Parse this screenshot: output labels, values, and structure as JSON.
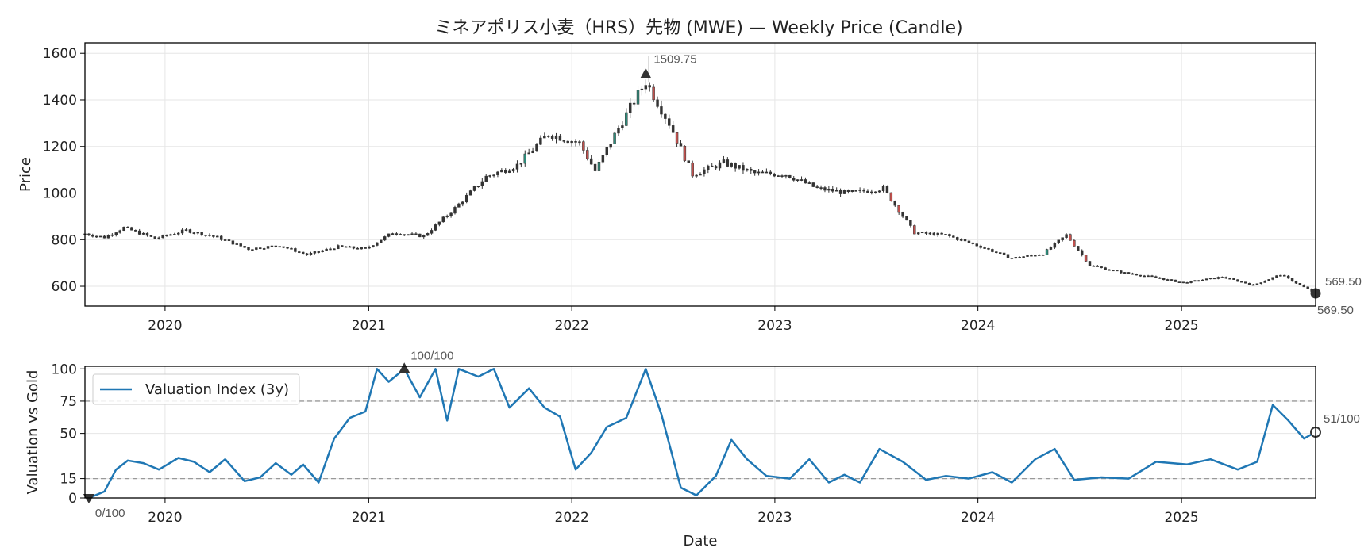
{
  "title": "ミネアポリス小麦（HRS）先物 (MWE) — Weekly Price (Candle)",
  "colors": {
    "up": "#2e8b7a",
    "down": "#c0504d",
    "body": "#333333",
    "line": "#1f77b4",
    "ref": "#999999"
  },
  "chart_data": [
    {
      "type": "candlestick",
      "title": "ミネアポリス小麦（HRS）先物 (MWE) — Weekly Price (Candle)",
      "ylabel": "Price",
      "xlabel": "",
      "x_range": [
        "2019-08-10",
        "2025-08-30"
      ],
      "ylim": [
        515,
        1645
      ],
      "yticks": [
        600,
        800,
        1000,
        1200,
        1400,
        1600
      ],
      "xticks": [
        "2020",
        "2021",
        "2022",
        "2023",
        "2024",
        "2025"
      ],
      "grid": true,
      "annotations": [
        {
          "label": "1509.75",
          "x": "2022-05-14",
          "y": 1509.75,
          "marker": "triangle-up"
        },
        {
          "label": "569.50",
          "x": "2025-08-30",
          "y": 569.5,
          "marker": "circle"
        },
        {
          "label": "569.50",
          "x": "2025-08-30",
          "y": 569.5,
          "marker": "none"
        }
      ],
      "anchors": [
        [
          "2019-08-10",
          825
        ],
        [
          "2019-09-14",
          810
        ],
        [
          "2019-10-19",
          852
        ],
        [
          "2019-12-14",
          805
        ],
        [
          "2020-02-08",
          840
        ],
        [
          "2020-04-04",
          810
        ],
        [
          "2020-05-30",
          760
        ],
        [
          "2020-07-25",
          775
        ],
        [
          "2020-09-12",
          735
        ],
        [
          "2020-11-07",
          770
        ],
        [
          "2020-12-26",
          760
        ],
        [
          "2021-02-13",
          830
        ],
        [
          "2021-04-10",
          815
        ],
        [
          "2021-06-05",
          935
        ],
        [
          "2021-07-31",
          1070
        ],
        [
          "2021-09-25",
          1120
        ],
        [
          "2021-11-20",
          1255
        ],
        [
          "2022-01-15",
          1215
        ],
        [
          "2022-02-12",
          1095
        ],
        [
          "2022-03-26",
          1280
        ],
        [
          "2022-05-14",
          1480
        ],
        [
          "2022-06-25",
          1300
        ],
        [
          "2022-08-06",
          1080
        ],
        [
          "2022-10-01",
          1130
        ],
        [
          "2022-11-26",
          1085
        ],
        [
          "2023-01-21",
          1080
        ],
        [
          "2023-03-18",
          1020
        ],
        [
          "2023-05-13",
          1000
        ],
        [
          "2023-07-15",
          1020
        ],
        [
          "2023-09-09",
          830
        ],
        [
          "2023-11-04",
          820
        ],
        [
          "2024-01-06",
          770
        ],
        [
          "2024-03-02",
          720
        ],
        [
          "2024-04-27",
          740
        ],
        [
          "2024-06-08",
          820
        ],
        [
          "2024-07-20",
          690
        ],
        [
          "2024-09-14",
          660
        ],
        [
          "2024-11-09",
          640
        ],
        [
          "2025-01-04",
          615
        ],
        [
          "2025-03-15",
          640
        ],
        [
          "2025-05-10",
          605
        ],
        [
          "2025-06-28",
          650
        ],
        [
          "2025-08-30",
          569.5
        ]
      ]
    },
    {
      "type": "line",
      "ylabel": "Valuation vs Gold",
      "xlabel": "Date",
      "ylim": [
        0,
        102
      ],
      "yticks": [
        0,
        15,
        50,
        75,
        100
      ],
      "xticks": [
        "2020",
        "2021",
        "2022",
        "2023",
        "2024",
        "2025"
      ],
      "reference_lines": [
        15,
        75
      ],
      "legend": "top-left",
      "grid": true,
      "series": [
        {
          "name": "Valuation Index (3y)",
          "points": [
            [
              "2019-08-17",
              0
            ],
            [
              "2019-09-14",
              5
            ],
            [
              "2019-10-05",
              22
            ],
            [
              "2019-10-26",
              29
            ],
            [
              "2019-11-23",
              27
            ],
            [
              "2019-12-21",
              22
            ],
            [
              "2020-01-25",
              31
            ],
            [
              "2020-02-22",
              28
            ],
            [
              "2020-03-21",
              20
            ],
            [
              "2020-04-18",
              30
            ],
            [
              "2020-05-23",
              13
            ],
            [
              "2020-06-20",
              16
            ],
            [
              "2020-07-18",
              27
            ],
            [
              "2020-08-15",
              18
            ],
            [
              "2020-09-05",
              26
            ],
            [
              "2020-10-03",
              12
            ],
            [
              "2020-10-31",
              46
            ],
            [
              "2020-11-28",
              62
            ],
            [
              "2020-12-26",
              67
            ],
            [
              "2021-01-16",
              100
            ],
            [
              "2021-02-06",
              90
            ],
            [
              "2021-03-06",
              100
            ],
            [
              "2021-04-03",
              78
            ],
            [
              "2021-05-01",
              100
            ],
            [
              "2021-05-22",
              60
            ],
            [
              "2021-06-12",
              100
            ],
            [
              "2021-07-17",
              94
            ],
            [
              "2021-08-14",
              100
            ],
            [
              "2021-09-11",
              70
            ],
            [
              "2021-10-16",
              85
            ],
            [
              "2021-11-13",
              70
            ],
            [
              "2021-12-11",
              63
            ],
            [
              "2022-01-08",
              22
            ],
            [
              "2022-02-05",
              35
            ],
            [
              "2022-03-05",
              55
            ],
            [
              "2022-04-09",
              62
            ],
            [
              "2022-05-14",
              100
            ],
            [
              "2022-06-11",
              65
            ],
            [
              "2022-07-16",
              8
            ],
            [
              "2022-08-13",
              2
            ],
            [
              "2022-09-17",
              17
            ],
            [
              "2022-10-15",
              45
            ],
            [
              "2022-11-12",
              30
            ],
            [
              "2022-12-17",
              17
            ],
            [
              "2023-01-28",
              15
            ],
            [
              "2023-03-04",
              30
            ],
            [
              "2023-04-08",
              12
            ],
            [
              "2023-05-06",
              18
            ],
            [
              "2023-06-03",
              12
            ],
            [
              "2023-07-08",
              38
            ],
            [
              "2023-08-19",
              28
            ],
            [
              "2023-09-30",
              14
            ],
            [
              "2023-11-04",
              17
            ],
            [
              "2023-12-16",
              15
            ],
            [
              "2024-01-27",
              20
            ],
            [
              "2024-03-02",
              12
            ],
            [
              "2024-04-13",
              30
            ],
            [
              "2024-05-18",
              38
            ],
            [
              "2024-06-22",
              14
            ],
            [
              "2024-08-10",
              16
            ],
            [
              "2024-09-28",
              15
            ],
            [
              "2024-11-16",
              28
            ],
            [
              "2025-01-11",
              26
            ],
            [
              "2025-02-22",
              30
            ],
            [
              "2025-04-12",
              22
            ],
            [
              "2025-05-17",
              28
            ],
            [
              "2025-06-14",
              72
            ],
            [
              "2025-07-12",
              60
            ],
            [
              "2025-08-09",
              46
            ],
            [
              "2025-08-30",
              51
            ]
          ]
        }
      ],
      "annotations": [
        {
          "label": "100/100",
          "x": "2021-03-06",
          "y": 100,
          "marker": "triangle-up"
        },
        {
          "label": "0/100",
          "x": "2019-08-17",
          "y": 0,
          "marker": "triangle-down"
        },
        {
          "label": "51/100",
          "x": "2025-08-30",
          "y": 51,
          "marker": "circle"
        }
      ]
    }
  ]
}
